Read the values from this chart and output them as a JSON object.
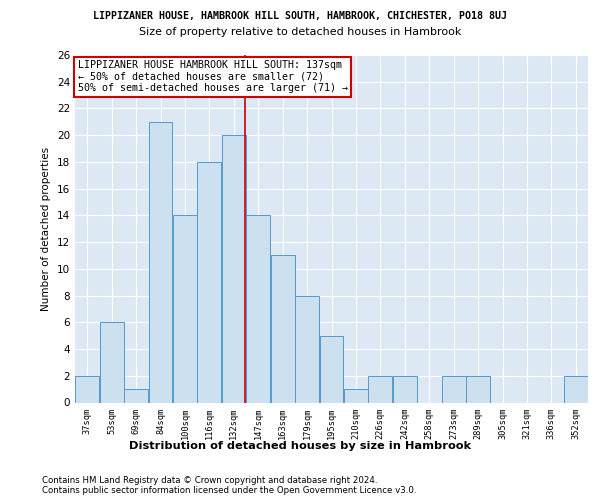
{
  "title_line1": "LIPPIZANER HOUSE, HAMBROOK HILL SOUTH, HAMBROOK, CHICHESTER, PO18 8UJ",
  "title_line2": "Size of property relative to detached houses in Hambrook",
  "xlabel": "Distribution of detached houses by size in Hambrook",
  "ylabel": "Number of detached properties",
  "categories": [
    "37sqm",
    "53sqm",
    "69sqm",
    "84sqm",
    "100sqm",
    "116sqm",
    "132sqm",
    "147sqm",
    "163sqm",
    "179sqm",
    "195sqm",
    "210sqm",
    "226sqm",
    "242sqm",
    "258sqm",
    "273sqm",
    "289sqm",
    "305sqm",
    "321sqm",
    "336sqm",
    "352sqm"
  ],
  "values": [
    2,
    6,
    1,
    21,
    14,
    18,
    20,
    14,
    11,
    8,
    5,
    1,
    2,
    2,
    0,
    2,
    2,
    0,
    0,
    0,
    2
  ],
  "bar_color": "#cce0f0",
  "bar_edge_color": "#5599cc",
  "vline_color": "#cc0000",
  "annotation_title": "LIPPIZANER HOUSE HAMBROOK HILL SOUTH: 137sqm",
  "annotation_line2": "← 50% of detached houses are smaller (72)",
  "annotation_line3": "50% of semi-detached houses are larger (71) →",
  "footer_line1": "Contains HM Land Registry data © Crown copyright and database right 2024.",
  "footer_line2": "Contains public sector information licensed under the Open Government Licence v3.0.",
  "background_color": "#dde8f5",
  "ylim": [
    0,
    26
  ],
  "yticks": [
    0,
    2,
    4,
    6,
    8,
    10,
    12,
    14,
    16,
    18,
    20,
    22,
    24,
    26
  ],
  "vline_pos": 6.47
}
